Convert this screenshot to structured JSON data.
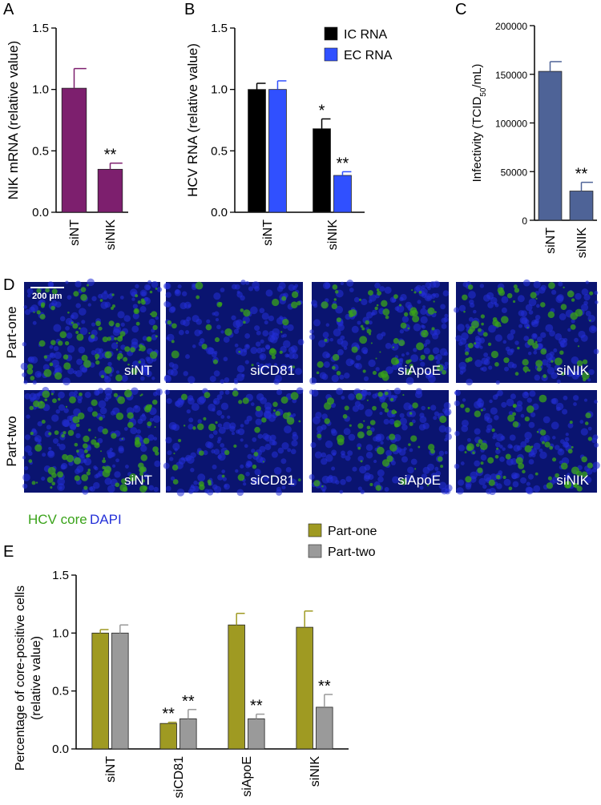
{
  "chart_data": [
    {
      "type": "bar",
      "panel": "A",
      "y_label": "NIK mRNA (relative value)",
      "categories": [
        "siNT",
        "siNIK"
      ],
      "values": [
        1.01,
        0.35
      ],
      "errors": [
        0.16,
        0.05
      ],
      "significance": [
        null,
        "**"
      ],
      "color": "#7d1f6e",
      "ylim": [
        0,
        1.5
      ],
      "yticks": [
        {
          "value": 0,
          "label": "0.0"
        },
        0.5,
        {
          "value": 1,
          "label": "1.0"
        },
        1.5
      ]
    },
    {
      "type": "bar",
      "panel": "B",
      "y_label": "HCV RNA (relative value)",
      "legend": "upper right",
      "categories": [
        "siNT",
        "siNIK"
      ],
      "series": [
        {
          "name": "IC RNA",
          "color": "#000000",
          "values": [
            1.0,
            0.68
          ],
          "errors": [
            0.05,
            0.08
          ],
          "significance": [
            null,
            "*"
          ]
        },
        {
          "name": "EC RNA",
          "color": "#3050ff",
          "values": [
            1.0,
            0.3
          ],
          "errors": [
            0.07,
            0.03
          ],
          "significance": [
            null,
            "**"
          ]
        }
      ],
      "ylim": [
        0,
        1.5
      ],
      "yticks": [
        {
          "value": 0,
          "label": "0.0"
        },
        0.5,
        {
          "value": 1,
          "label": "1.0"
        },
        1.5
      ]
    },
    {
      "type": "bar",
      "panel": "C",
      "y_label_parts": [
        "Infectivity (TCID",
        "50",
        "/mL)"
      ],
      "categories": [
        "siNT",
        "siNIK"
      ],
      "values": [
        153000,
        30000
      ],
      "errors": [
        10000,
        9000
      ],
      "significance": [
        null,
        "**"
      ],
      "color": "#4e6397",
      "ylim": [
        0,
        200000
      ],
      "yticks": [
        0,
        50000,
        100000,
        150000,
        200000
      ]
    },
    {
      "type": "bar",
      "panel": "E",
      "y_label_lines": [
        "Percentage of core-positive cells",
        "(relative value)"
      ],
      "legend": "upper right",
      "categories": [
        "siNT",
        "siCD81",
        "siApoE",
        "siNIK"
      ],
      "series": [
        {
          "name": "Part-one",
          "color": "#9f9a22",
          "values": [
            1.0,
            0.22,
            1.07,
            1.05
          ],
          "errors": [
            0.03,
            0.01,
            0.1,
            0.14
          ],
          "significance": [
            null,
            "**",
            null,
            null
          ]
        },
        {
          "name": "Part-two",
          "color": "#9a9a9a",
          "values": [
            1.0,
            0.26,
            0.26,
            0.36
          ],
          "errors": [
            0.07,
            0.08,
            0.04,
            0.11
          ],
          "significance": [
            null,
            "**",
            "**",
            "**"
          ]
        }
      ],
      "ylim": [
        0,
        1.5
      ],
      "yticks": [
        {
          "value": 0,
          "label": "0.0"
        },
        0.5,
        {
          "value": 1,
          "label": "1.0"
        },
        1.5
      ]
    }
  ],
  "panel_d": {
    "label": "D",
    "scale_bar": "200 µm",
    "rows": [
      "Part-one",
      "Part-two"
    ],
    "columns": [
      "siNT",
      "siCD81",
      "siApoE",
      "siNIK"
    ],
    "legend": [
      {
        "name": "HCV core",
        "color": "#3aa31a"
      },
      {
        "name": "DAPI",
        "color": "#2430d8"
      }
    ]
  }
}
